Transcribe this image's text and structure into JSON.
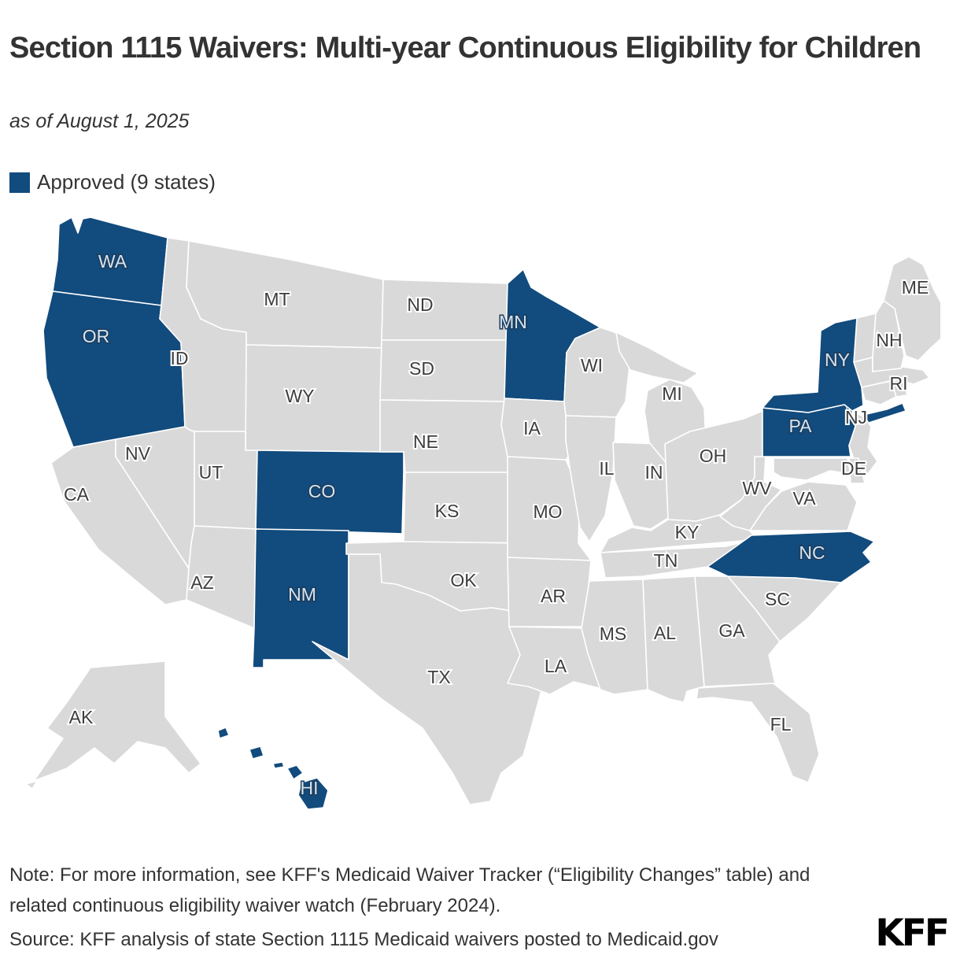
{
  "header": {
    "title": "Section 1115 Waivers: Multi-year Continuous Eligibility for Children",
    "subtitle": "as of August 1, 2025"
  },
  "legend": {
    "items": [
      {
        "label": "Approved (9 states)",
        "status": "approved",
        "color": "#124b7d"
      }
    ]
  },
  "map": {
    "approved_color": "#124b7d",
    "default_color": "#d9d9d9",
    "border_color": "#ffffff",
    "label_color": "#3d3d3d",
    "approved_label_color": "#d6e4ef",
    "approved_states": [
      "WA",
      "OR",
      "MN",
      "NY",
      "PA",
      "CO",
      "NM",
      "NC",
      "HI"
    ],
    "state_labels": [
      "WA",
      "OR",
      "CA",
      "NV",
      "ID",
      "MT",
      "WY",
      "UT",
      "CO",
      "AZ",
      "NM",
      "ND",
      "SD",
      "NE",
      "KS",
      "OK",
      "TX",
      "MN",
      "IA",
      "MO",
      "AR",
      "LA",
      "WI",
      "IL",
      "IN",
      "MI",
      "OH",
      "KY",
      "TN",
      "MS",
      "AL",
      "GA",
      "SC",
      "NC",
      "VA",
      "WV",
      "PA",
      "NY",
      "NJ",
      "DE",
      "ME",
      "NH",
      "RI",
      "FL",
      "AK",
      "HI"
    ]
  },
  "footer": {
    "note": "Note: For more information, see KFF's Medicaid Waiver Tracker (“Eligibility Changes” table) and related continuous eligibility waiver watch (February 2024).",
    "source": "Source: KFF analysis of state Section 1115 Medicaid waivers posted to Medicaid.gov",
    "logo": "KFF"
  }
}
